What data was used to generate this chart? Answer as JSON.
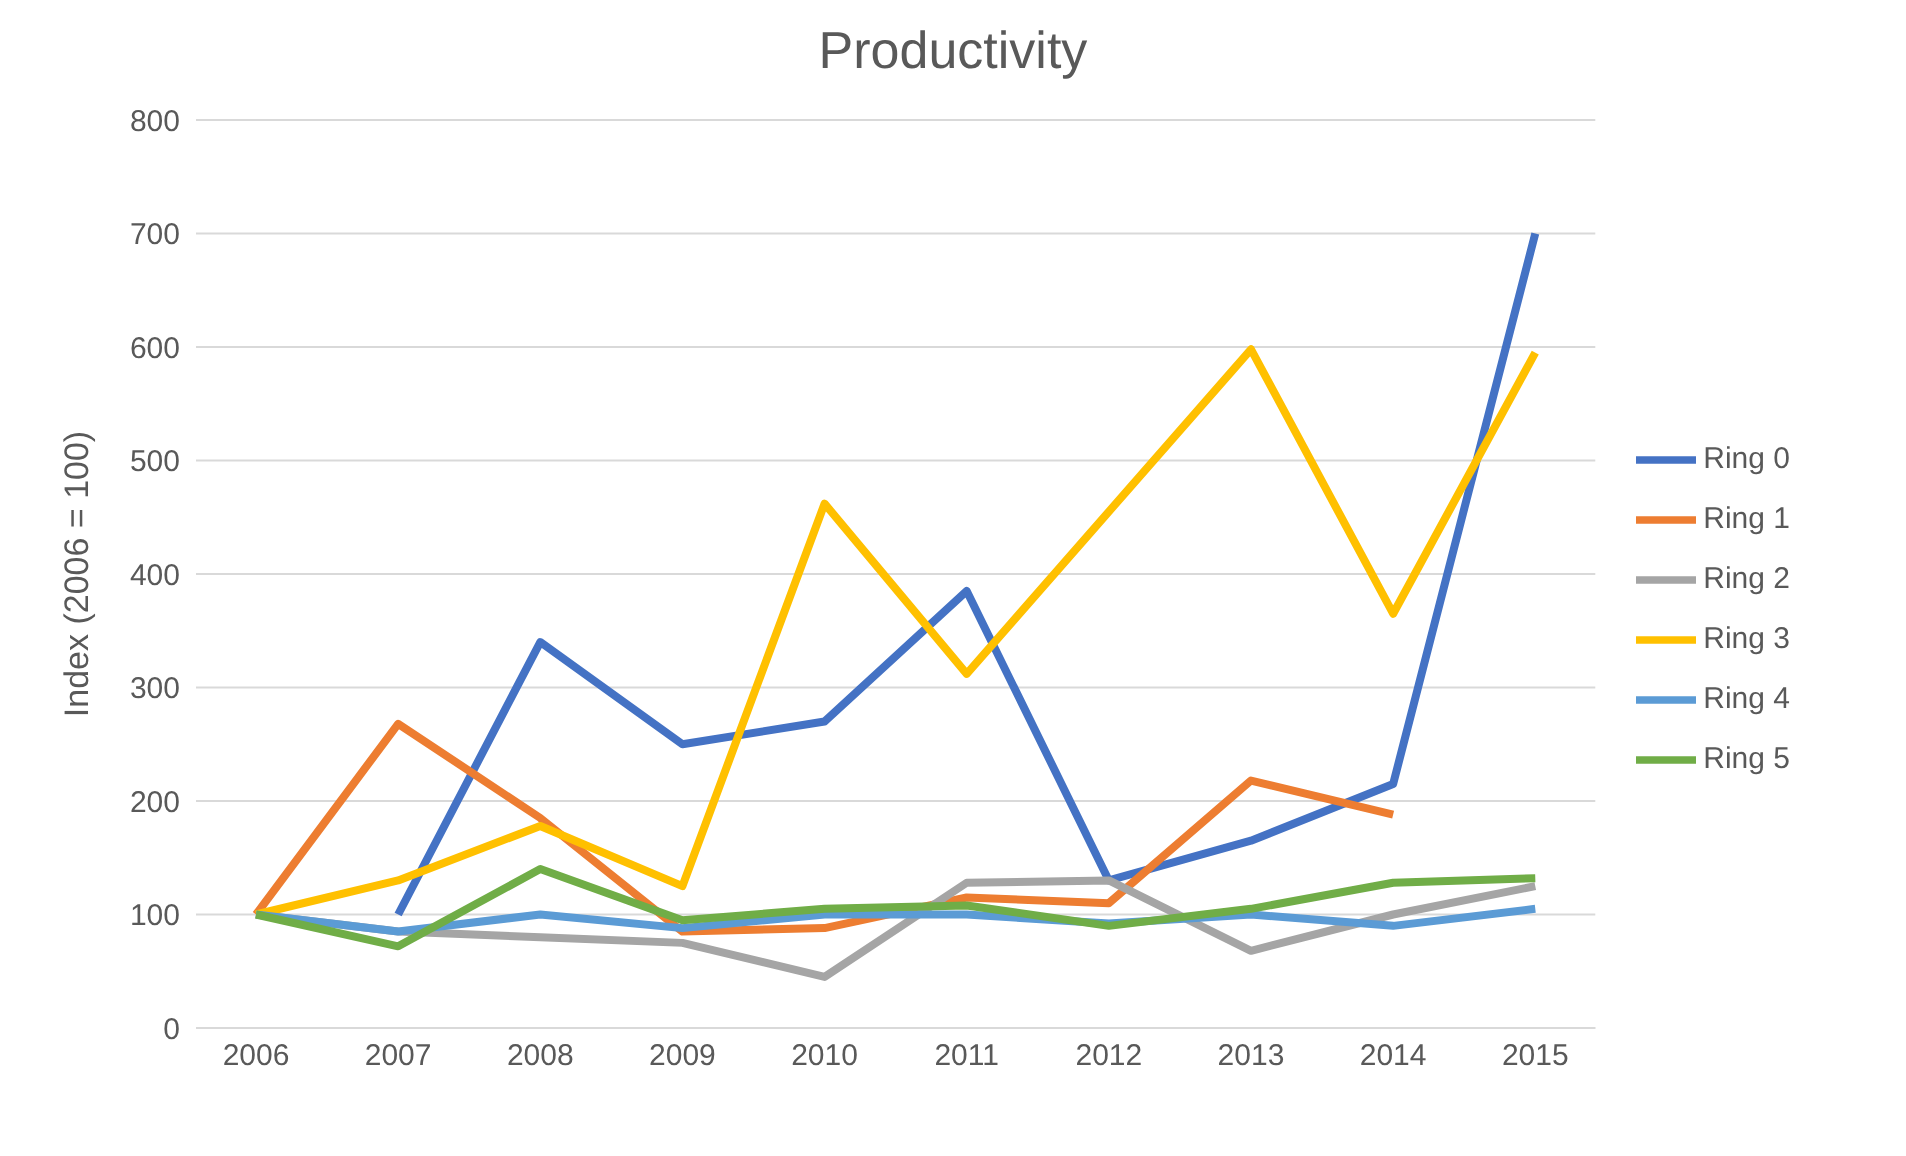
{
  "chart_data": {
    "type": "line",
    "title": "Productivity",
    "ylabel": "Index (2006 = 100)",
    "categories": [
      "2006",
      "2007",
      "2008",
      "2009",
      "2010",
      "2011",
      "2012",
      "2013",
      "2014",
      "2015"
    ],
    "series": [
      {
        "name": "Ring 0",
        "color": "#4472c4",
        "values": [
          null,
          100,
          340,
          250,
          270,
          385,
          130,
          165,
          215,
          700
        ]
      },
      {
        "name": "Ring 1",
        "color": "#ed7d31",
        "values": [
          100,
          268,
          185,
          85,
          88,
          115,
          110,
          218,
          188,
          null
        ]
      },
      {
        "name": "Ring 2",
        "color": "#a5a5a5",
        "values": [
          100,
          85,
          80,
          75,
          45,
          128,
          130,
          68,
          100,
          125
        ]
      },
      {
        "name": "Ring 3",
        "color": "#ffc000",
        "values": [
          100,
          130,
          178,
          125,
          462,
          312,
          455,
          598,
          365,
          595
        ]
      },
      {
        "name": "Ring 4",
        "color": "#5b9bd5",
        "values": [
          100,
          85,
          100,
          88,
          100,
          100,
          92,
          100,
          90,
          105
        ]
      },
      {
        "name": "Ring 5",
        "color": "#70ad47",
        "values": [
          100,
          72,
          140,
          95,
          105,
          108,
          90,
          105,
          128,
          132
        ]
      }
    ],
    "ylim": [
      0,
      800
    ],
    "yticks": [
      0,
      100,
      200,
      300,
      400,
      500,
      600,
      700,
      800
    ],
    "grid": "y",
    "legend": "right",
    "marker": "none",
    "line_style": "solid"
  }
}
